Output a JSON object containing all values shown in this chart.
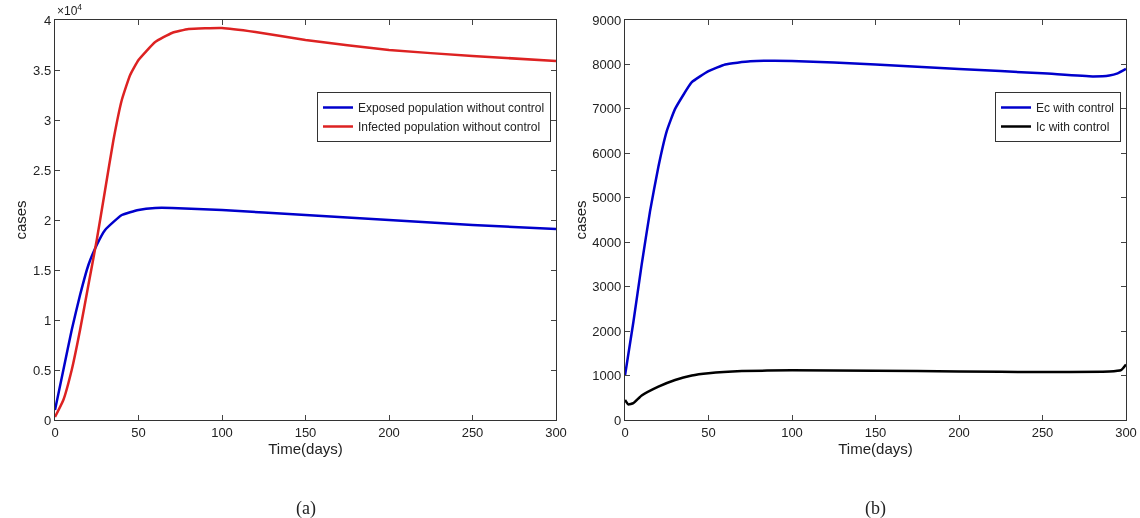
{
  "chart_data": [
    {
      "type": "line",
      "xlabel": "Time(days)",
      "ylabel": "cases",
      "annotations": [
        "×10$^{4}$",
        "(a)"
      ],
      "xlim": [
        0,
        300
      ],
      "xticks": [
        0,
        50,
        100,
        150,
        200,
        250,
        300
      ],
      "ylim": [
        0,
        4
      ],
      "yticks": [
        0,
        0.5,
        1,
        1.5,
        2,
        2.5,
        3,
        3.5,
        4
      ],
      "grid": false,
      "legend": "top right",
      "marker": "none",
      "line_style": "solid",
      "series": [
        {
          "name": "Exposed population without control",
          "color": "#0000cc",
          "x": [
            0,
            5,
            10,
            15,
            20,
            25,
            30,
            40,
            50,
            60,
            70,
            100,
            150,
            200,
            250,
            300
          ],
          "values": [
            0.1,
            0.5,
            0.9,
            1.25,
            1.55,
            1.75,
            1.9,
            2.05,
            2.1,
            2.12,
            2.12,
            2.1,
            2.05,
            2.0,
            1.95,
            1.91
          ]
        },
        {
          "name": "Infected population without control",
          "color": "#dd2222",
          "x": [
            0,
            5,
            10,
            15,
            20,
            25,
            30,
            35,
            40,
            45,
            50,
            60,
            70,
            80,
            100,
            120,
            150,
            200,
            250,
            300
          ],
          "values": [
            0.03,
            0.2,
            0.5,
            0.9,
            1.35,
            1.8,
            2.3,
            2.8,
            3.2,
            3.45,
            3.6,
            3.78,
            3.87,
            3.91,
            3.92,
            3.88,
            3.8,
            3.7,
            3.64,
            3.59
          ]
        }
      ]
    },
    {
      "type": "line",
      "xlabel": "Time(days)",
      "ylabel": "cases",
      "annotations": [
        "(b)"
      ],
      "xlim": [
        0,
        300
      ],
      "xticks": [
        0,
        50,
        100,
        150,
        200,
        250,
        300
      ],
      "ylim": [
        0,
        9000
      ],
      "yticks": [
        0,
        1000,
        2000,
        3000,
        4000,
        5000,
        6000,
        7000,
        8000,
        9000
      ],
      "grid": false,
      "legend": "top right",
      "marker": "none",
      "line_style": "solid",
      "series": [
        {
          "name": "Ec with control",
          "color": "#0000cc",
          "x": [
            0,
            5,
            10,
            15,
            20,
            25,
            30,
            40,
            50,
            60,
            75,
            100,
            150,
            200,
            250,
            280,
            290,
            295,
            300
          ],
          "values": [
            1000,
            2200,
            3500,
            4700,
            5700,
            6500,
            7000,
            7600,
            7850,
            8000,
            8070,
            8080,
            8000,
            7900,
            7800,
            7730,
            7750,
            7800,
            7900
          ]
        },
        {
          "name": "Ic with control",
          "color": "#000000",
          "x": [
            0,
            2,
            5,
            10,
            20,
            30,
            40,
            50,
            70,
            100,
            150,
            200,
            250,
            290,
            297,
            300
          ],
          "values": [
            450,
            350,
            380,
            550,
            750,
            900,
            1000,
            1050,
            1100,
            1120,
            1110,
            1090,
            1080,
            1090,
            1120,
            1250
          ]
        }
      ]
    }
  ]
}
